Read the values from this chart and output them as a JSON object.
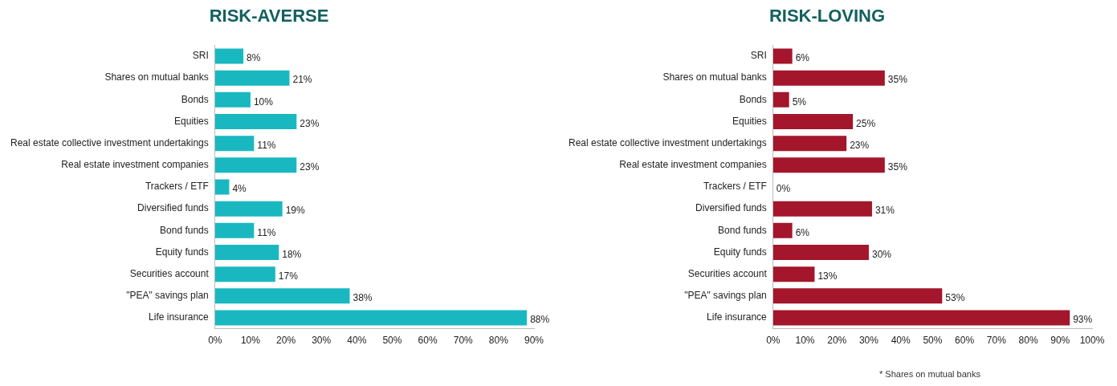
{
  "chart_data": [
    {
      "type": "bar",
      "orientation": "horizontal",
      "title": "RISK-AVERSE",
      "categories": [
        "SRI",
        "Shares on mutual banks",
        "Bonds",
        "Equities",
        "Real estate collective investment undertakings",
        "Real estate investment companies",
        "Trackers / ETF",
        "Diversified funds",
        "Bond funds",
        "Equity funds",
        "Securities account",
        "\"PEA\" savings plan",
        "Life insurance"
      ],
      "values": [
        8,
        21,
        10,
        23,
        11,
        23,
        4,
        19,
        11,
        18,
        17,
        38,
        88
      ],
      "value_labels": [
        "8%",
        "21%",
        "10%",
        "23%",
        "11%",
        "23%",
        "4%",
        "19%",
        "11%",
        "18%",
        "17%",
        "38%",
        "88%"
      ],
      "color": "#19b8c0",
      "xlim": [
        0,
        90
      ],
      "xticks": [
        {
          "value": 0,
          "label": "0%"
        },
        {
          "value": 10,
          "label": "10%"
        },
        {
          "value": 20,
          "label": "20%"
        },
        {
          "value": 30,
          "label": "30%"
        },
        {
          "value": 40,
          "label": "40%"
        },
        {
          "value": 50,
          "label": "50%"
        },
        {
          "value": 60,
          "label": "60%"
        },
        {
          "value": 70,
          "label": "70%"
        },
        {
          "value": 80,
          "label": "80%"
        },
        {
          "value": 90,
          "label": "90%"
        }
      ],
      "grid": false,
      "legend": false
    },
    {
      "type": "bar",
      "orientation": "horizontal",
      "title": "RISK-LOVING",
      "categories": [
        "SRI",
        "Shares on mutual banks",
        "Bonds",
        "Equities",
        "Real estate collective investment undertakings",
        "Real estate investment companies",
        "Trackers / ETF",
        "Diversified funds",
        "Bond funds",
        "Equity funds",
        "Securities account",
        "\"PEA\" savings plan",
        "Life insurance"
      ],
      "values": [
        6,
        35,
        5,
        25,
        23,
        35,
        0,
        31,
        6,
        30,
        13,
        53,
        93
      ],
      "value_labels": [
        "6%",
        "35%",
        "5%",
        "25%",
        "23%",
        "35%",
        "0%",
        "31%",
        "6%",
        "30%",
        "13%",
        "53%",
        "93%"
      ],
      "color": "#a3162b",
      "xlim": [
        0,
        100
      ],
      "xticks": [
        {
          "value": 0,
          "label": "0%"
        },
        {
          "value": 10,
          "label": "10%"
        },
        {
          "value": 20,
          "label": "20%"
        },
        {
          "value": 30,
          "label": "30%"
        },
        {
          "value": 40,
          "label": "40%"
        },
        {
          "value": 50,
          "label": "50%"
        },
        {
          "value": 60,
          "label": "60%"
        },
        {
          "value": 70,
          "label": "70%"
        },
        {
          "value": 80,
          "label": "80%"
        },
        {
          "value": 90,
          "label": "90%"
        },
        {
          "value": 100,
          "label": "100%"
        }
      ],
      "grid": false,
      "legend": false,
      "annotations": [
        "* Shares on mutual banks"
      ]
    }
  ]
}
